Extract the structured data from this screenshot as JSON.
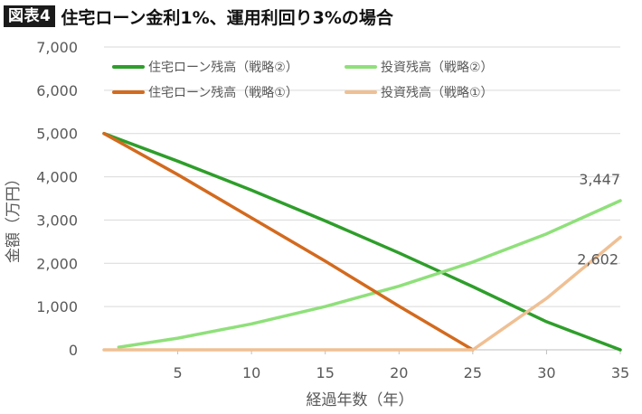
{
  "header": {
    "badge": "図表4",
    "title": "住宅ローン金利1%、運用利回り3%の場合"
  },
  "colors": {
    "loan_strategy2": "#2e9e2a",
    "invest_strategy2": "#8fe07a",
    "loan_strategy1": "#d36a1e",
    "invest_strategy1": "#efc094",
    "grid": "#d9d9d9",
    "axis": "#bfbfbf"
  },
  "chart_data": {
    "type": "line",
    "xlabel": "経過年数（年）",
    "ylabel": "金額（万円）",
    "xlim": [
      0,
      35
    ],
    "ylim": [
      0,
      7000
    ],
    "xticks": [
      5,
      10,
      15,
      20,
      25,
      30,
      35
    ],
    "yticks": [
      0,
      1000,
      2000,
      3000,
      4000,
      5000,
      6000,
      7000
    ],
    "ytick_labels": [
      "0",
      "1,000",
      "2,000",
      "3,000",
      "4,000",
      "5,000",
      "6,000",
      "7,000"
    ],
    "grid": "horizontal",
    "legend_position": "top",
    "series": [
      {
        "name": "住宅ローン残高（戦略②）",
        "color_key": "loan_strategy2",
        "x": [
          0,
          5,
          10,
          15,
          20,
          25,
          30,
          35
        ],
        "y": [
          5000,
          4360,
          3690,
          2980,
          2240,
          1460,
          650,
          0
        ]
      },
      {
        "name": "投資残高（戦略②）",
        "color_key": "invest_strategy2",
        "x": [
          1,
          5,
          10,
          15,
          20,
          25,
          30,
          35
        ],
        "y": [
          60,
          270,
          600,
          1000,
          1470,
          2030,
          2680,
          3447
        ]
      },
      {
        "name": "住宅ローン残高（戦略①）",
        "color_key": "loan_strategy1",
        "x": [
          0,
          5,
          10,
          15,
          20,
          25
        ],
        "y": [
          5000,
          4050,
          3050,
          2050,
          1010,
          0
        ]
      },
      {
        "name": "投資残高（戦略①）",
        "color_key": "invest_strategy1",
        "x": [
          0,
          5,
          10,
          15,
          20,
          25,
          30,
          35
        ],
        "y": [
          0,
          0,
          0,
          0,
          0,
          0,
          1190,
          2602
        ]
      }
    ],
    "data_labels": [
      {
        "text": "3,447",
        "x": 35,
        "y": 3447
      },
      {
        "text": "2,602",
        "x": 35,
        "y": 2602
      }
    ]
  }
}
